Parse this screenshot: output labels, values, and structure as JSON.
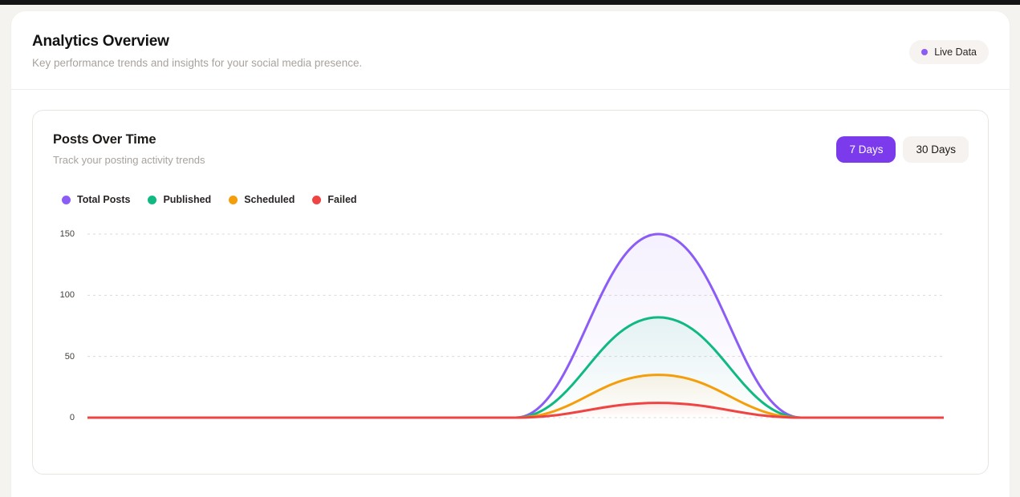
{
  "page": {
    "title": "Analytics Overview",
    "subtitle": "Key performance trends and insights for your social media presence.",
    "live_badge_label": "Live Data"
  },
  "card": {
    "title": "Posts Over Time",
    "subtitle": "Track your posting activity trends",
    "range_buttons": [
      {
        "label": "7 Days",
        "active": true
      },
      {
        "label": "30 Days",
        "active": false
      }
    ]
  },
  "colors": {
    "accent": "#7C3AED",
    "badge_dot": "#8B5CF6",
    "grid": "#DCD9D5"
  },
  "chart_data": {
    "type": "line",
    "title": "Posts Over Time",
    "num_points": 7,
    "x_labels_visible": false,
    "categories": [
      "",
      "",
      "",
      "",
      "",
      "",
      ""
    ],
    "series": [
      {
        "name": "Total Posts",
        "color": "#8B5CF6",
        "values": [
          0,
          0,
          0,
          0,
          150,
          0,
          0
        ]
      },
      {
        "name": "Published",
        "color": "#10B981",
        "values": [
          0,
          0,
          0,
          0,
          82,
          0,
          0
        ]
      },
      {
        "name": "Scheduled",
        "color": "#F59E0B",
        "values": [
          0,
          0,
          0,
          0,
          35,
          0,
          0
        ]
      },
      {
        "name": "Failed",
        "color": "#EF4444",
        "values": [
          0,
          0,
          0,
          0,
          12,
          0,
          0
        ]
      }
    ],
    "yticks": [
      0,
      50,
      100,
      150
    ],
    "ylim": [
      0,
      150
    ],
    "grid": "dashed-horizontal",
    "legend_position": "top-left",
    "smoothing": true
  }
}
